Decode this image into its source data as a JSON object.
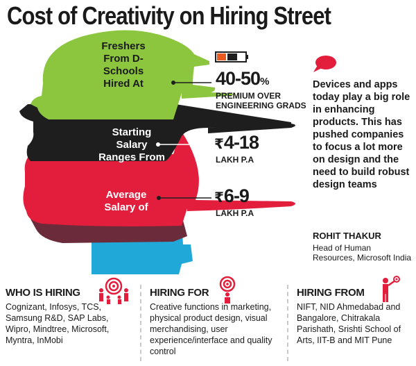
{
  "title": "Cost of Creativity on Hiring Street",
  "bands": {
    "freshers": "Freshers From D-Schools Hired At",
    "starting": "Starting Salary Ranges From",
    "average": "Average Salary of"
  },
  "stats": {
    "premium_value": "40-50",
    "premium_unit": "%",
    "premium_note_1": "PREMIUM OVER",
    "premium_note_2": "ENGINEERING GRADS",
    "starting_currency": "₹",
    "starting_value": "4-18",
    "starting_unit": "LAKH P.A",
    "average_currency": "₹",
    "average_value": "6-9",
    "average_unit": "LAKH P.A"
  },
  "quote": {
    "text": "Devices and apps today play a big role in enhancing products. This has pushed companies to focus a lot more on design and the need to build robust design teams",
    "name": "ROHIT THAKUR",
    "role": "Head of Human Resources, Microsoft India"
  },
  "columns": {
    "who": {
      "title": "WHO IS HIRING",
      "body": "Cognizant, Infosys, TCS, Samsung R&D, SAP Labs, Wipro, Mindtree, Microsoft, Myntra, InMobi"
    },
    "for": {
      "title": "HIRING FOR",
      "body": "Creative functions in marketing, physical product design, visual merchandising, user experience/interface and quality control"
    },
    "from": {
      "title": "HIRING FROM",
      "body": "NIFT, NID Ahmedabad and Bangalore, Chitrakala Parishath, Srishti School of Arts, IIT-B and MIT Pune"
    }
  },
  "colors": {
    "green": "#8cc63e",
    "black": "#1e1e1e",
    "red": "#e31d3c",
    "maroon": "#6b2b3b",
    "cyan": "#1fa8d8"
  },
  "icons": [
    "speech-bubble-icon",
    "people-target-icon",
    "target-person-icon",
    "person-with-target-icon"
  ]
}
